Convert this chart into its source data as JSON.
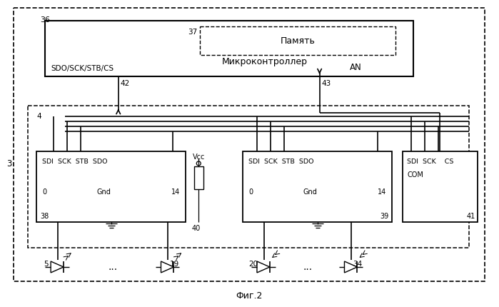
{
  "bg": "#ffffff",
  "title": "Фиг.2",
  "label_36": "36",
  "label_37": "37",
  "label_3": "3",
  "label_4": "4",
  "label_42": "42",
  "label_43": "43",
  "label_AN": "AN",
  "label_38": "38",
  "label_39": "39",
  "label_40": "40",
  "label_41": "41",
  "label_5": "5",
  "label_19": "19",
  "label_20": "20",
  "label_34": "34",
  "label_Vcc": "Vcc",
  "label_sdo_sck": "SDO/SCK/STB/CS",
  "label_mc": "Микроконтроллер",
  "label_mem": "Память",
  "label_Gnd": "Gnd",
  "label_COM": "COM",
  "label_0": "0",
  "label_14": "14"
}
